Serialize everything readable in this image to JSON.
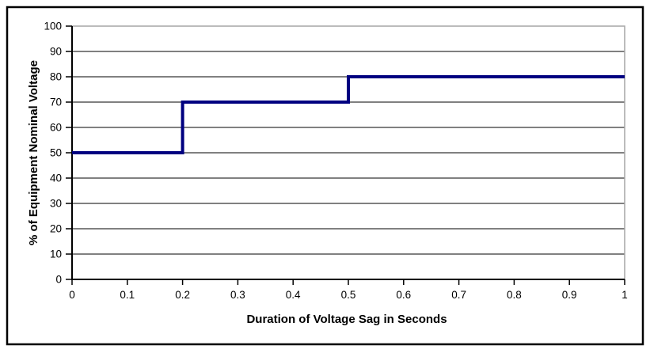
{
  "figure": {
    "background_color": "#ffffff",
    "frame_color": "#000000"
  },
  "chart_data": {
    "type": "line",
    "subtype": "step",
    "xlabel": "Duration of Voltage Sag in Seconds",
    "ylabel": "% of Equipment Nominal Voltage",
    "xlim": [
      0,
      1
    ],
    "ylim": [
      0,
      100
    ],
    "x_ticks": [
      0,
      0.1,
      0.2,
      0.3,
      0.4,
      0.5,
      0.6,
      0.7,
      0.8,
      0.9,
      1
    ],
    "x_tick_labels": [
      "0",
      "0.1",
      "0.2",
      "0.3",
      "0.4",
      "0.5",
      "0.6",
      "0.7",
      "0.8",
      "0.9",
      "1"
    ],
    "y_ticks": [
      0,
      10,
      20,
      30,
      40,
      50,
      60,
      70,
      80,
      90,
      100
    ],
    "y_tick_labels": [
      "0",
      "10",
      "20",
      "30",
      "40",
      "50",
      "60",
      "70",
      "80",
      "90",
      "100"
    ],
    "grid": "horizontal",
    "legend": "none",
    "series": [
      {
        "name": "voltage-sag-tolerance-curve",
        "color": "#000080",
        "points": [
          [
            0,
            50
          ],
          [
            0.2,
            50
          ],
          [
            0.2,
            70
          ],
          [
            0.5,
            70
          ],
          [
            0.5,
            80
          ],
          [
            1,
            80
          ]
        ]
      }
    ],
    "colors": {
      "gridline": "#000000",
      "axis": "#000000",
      "plot_border": "#a6a6a6",
      "text": "#000000"
    }
  }
}
